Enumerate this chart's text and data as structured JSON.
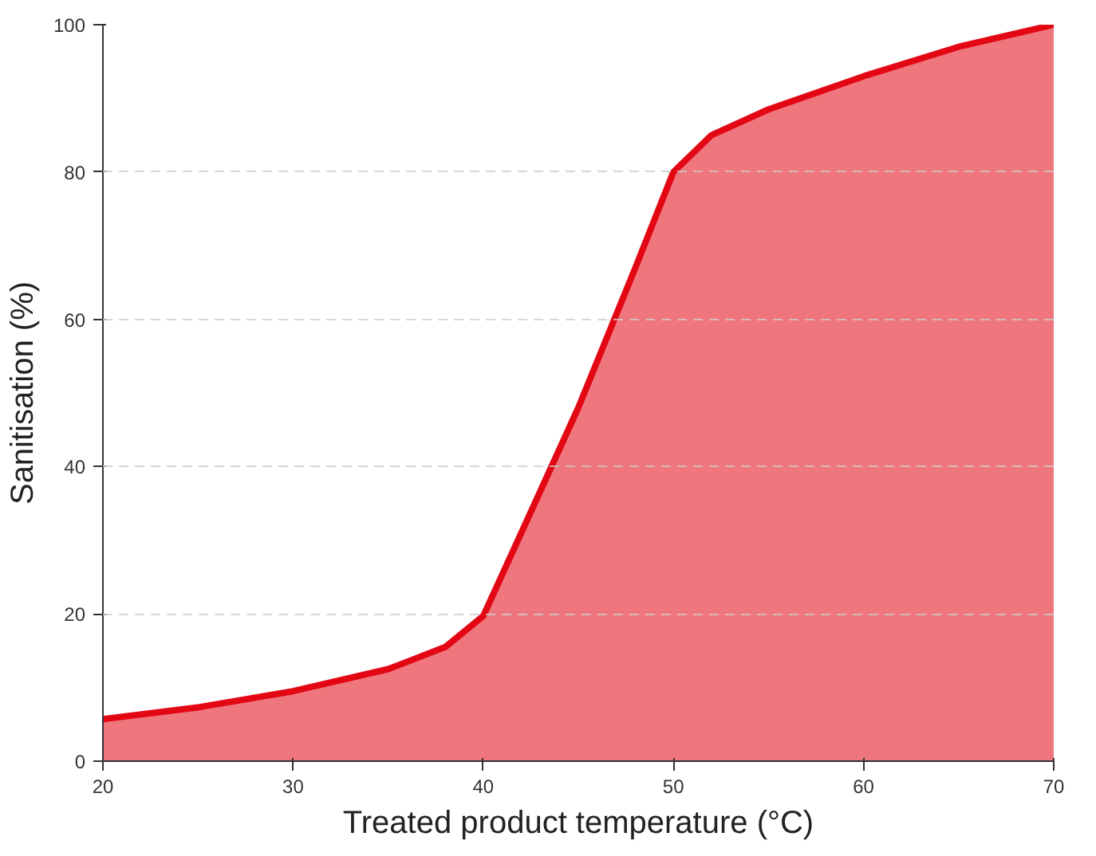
{
  "chart_data": {
    "type": "area",
    "xlabel": "Treated product temperature (°C)",
    "ylabel": "Sanitisation (%)",
    "x": [
      20,
      25,
      30,
      35,
      38,
      40,
      42,
      45,
      48,
      50,
      52,
      55,
      60,
      65,
      70
    ],
    "series": [
      {
        "color": "#e30613",
        "values": [
          5.7,
          7.3,
          9.5,
          12.5,
          15.5,
          19.7,
          31,
          48,
          67,
          80,
          85,
          88.5,
          93,
          97,
          100
        ]
      }
    ],
    "xlim": [
      20,
      70
    ],
    "ylim": [
      0,
      100
    ],
    "xticks": [
      20,
      30,
      40,
      50,
      60,
      70
    ],
    "yticks": [
      0,
      20,
      40,
      60,
      80,
      100
    ],
    "grid": "y"
  }
}
